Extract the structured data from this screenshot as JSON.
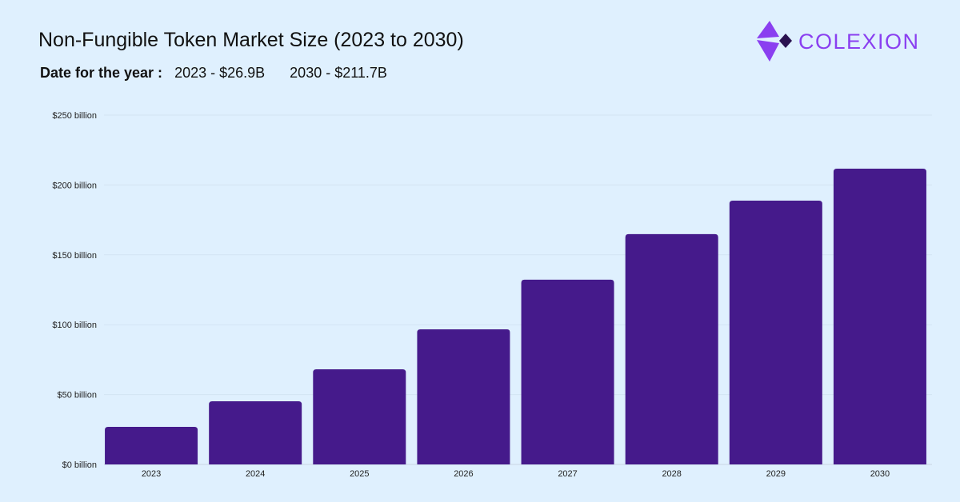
{
  "header": {
    "title": "Non-Fungible Token Market Size (2023 to 2030)",
    "subtitle_label": "Date for the year :",
    "subtitle_values": [
      "2023 - $26.9B",
      "2030 - $211.7B"
    ]
  },
  "logo": {
    "text": "COLEXION",
    "color": "#8a3ff0"
  },
  "chart_data": {
    "type": "bar",
    "title": "Non-Fungible Token Market Size (2023 to 2030)",
    "xlabel": "",
    "ylabel": "",
    "categories": [
      "2023",
      "2024",
      "2025",
      "2026",
      "2027",
      "2028",
      "2029",
      "2030"
    ],
    "values": [
      26.9,
      45.2,
      68.1,
      96.7,
      132.2,
      164.8,
      188.8,
      211.7
    ],
    "ylim": [
      0,
      250
    ],
    "yticks": [
      0,
      50,
      100,
      150,
      200,
      250
    ],
    "ytick_labels": [
      "$0 billion",
      "$50 billion",
      "$100 billion",
      "$150 billion",
      "$200 billion",
      "$250 billion"
    ],
    "grid": true,
    "bar_color": "#451a8b"
  }
}
